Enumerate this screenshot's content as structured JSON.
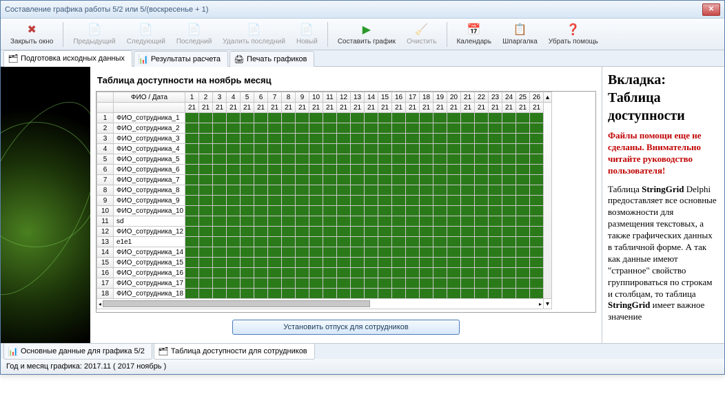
{
  "window": {
    "title": "Составление графика работы 5/2 или 5/(воскресенье + 1)"
  },
  "toolbar": [
    {
      "icon": "✖",
      "label": "Закрыть окно",
      "color": "#c04040",
      "enabled": true,
      "name": "close-window-button"
    },
    {
      "sep": true
    },
    {
      "icon": "📄",
      "label": "Предыдущий",
      "enabled": false,
      "name": "prev-button"
    },
    {
      "icon": "📄",
      "label": "Следующий",
      "enabled": false,
      "name": "next-button"
    },
    {
      "icon": "📄",
      "label": "Последний",
      "enabled": false,
      "name": "last-button"
    },
    {
      "icon": "📄",
      "label": "Удалить последний",
      "enabled": false,
      "name": "delete-last-button"
    },
    {
      "icon": "📄",
      "label": "Новый",
      "enabled": false,
      "name": "new-button"
    },
    {
      "sep": true
    },
    {
      "icon": "▶",
      "label": "Составить график",
      "color": "#2a9a2a",
      "enabled": true,
      "name": "compose-button"
    },
    {
      "icon": "🧹",
      "label": "Очистить",
      "enabled": false,
      "name": "clear-button"
    },
    {
      "sep": true
    },
    {
      "icon": "📅",
      "label": "Календарь",
      "enabled": true,
      "name": "calendar-button"
    },
    {
      "icon": "📋",
      "label": "Шпаргалка",
      "enabled": true,
      "name": "cheatsheet-button"
    },
    {
      "icon": "❓",
      "label": "Убрать помощь",
      "color": "#c04040",
      "enabled": true,
      "name": "hide-help-button"
    }
  ],
  "topTabs": [
    {
      "icon": "🗂",
      "label": "Подготовка исходных данных",
      "active": true,
      "name": "tab-prepare"
    },
    {
      "icon": "📊",
      "label": "Результаты расчета",
      "active": false,
      "name": "tab-results"
    },
    {
      "icon": "🖨",
      "label": "Печать графиков",
      "active": false,
      "name": "tab-print"
    }
  ],
  "content": {
    "title": "Таблица доступности на ноябрь месяц",
    "headerFio": "ФИО / Дата",
    "days": [
      1,
      2,
      3,
      4,
      5,
      6,
      7,
      8,
      9,
      10,
      11,
      12,
      13,
      14,
      15,
      16,
      17,
      18,
      19,
      20,
      21,
      22,
      23,
      24,
      25,
      26
    ],
    "subheader": "21",
    "rows": [
      {
        "n": 1,
        "fio": "ФИО_сотрудника_1"
      },
      {
        "n": 2,
        "fio": "ФИО_сотрудника_2"
      },
      {
        "n": 3,
        "fio": "ФИО_сотрудника_3"
      },
      {
        "n": 4,
        "fio": "ФИО_сотрудника_4"
      },
      {
        "n": 5,
        "fio": "ФИО_сотрудника_5"
      },
      {
        "n": 6,
        "fio": "ФИО_сотрудника_6"
      },
      {
        "n": 7,
        "fio": "ФИО_сотрудника_7"
      },
      {
        "n": 8,
        "fio": "ФИО_сотрудника_8"
      },
      {
        "n": 9,
        "fio": "ФИО_сотрудника_9"
      },
      {
        "n": 10,
        "fio": "ФИО_сотрудника_10"
      },
      {
        "n": 11,
        "fio": "sd"
      },
      {
        "n": 12,
        "fio": "ФИО_сотрудника_12"
      },
      {
        "n": 13,
        "fio": "e1e1"
      },
      {
        "n": 14,
        "fio": "ФИО_сотрудника_14"
      },
      {
        "n": 15,
        "fio": "ФИО_сотрудника_15"
      },
      {
        "n": 16,
        "fio": "ФИО_сотрудника_16"
      },
      {
        "n": 17,
        "fio": "ФИО_сотрудника_17"
      },
      {
        "n": 18,
        "fio": "ФИО_сотрудника_18"
      }
    ],
    "cellColor": "#2b7a1a",
    "bigButton": "Установить отпуск для сотрудников"
  },
  "help": {
    "title": "Вкладка: Таблица доступности",
    "warn": "Файлы помощи еще не сделаны. Внимательно читайте руководство пользователя!",
    "body1": "Таблица ",
    "bold1": "StringGrid",
    "body2": " Delphi предоставляет все основные возможности для размещения текстовых, а также графических данных в табличной форме. А так как данные имеют \"странное\" свойство группироваться по строкам и столбцам, то таблица ",
    "bold2": "StringGrid",
    "body3": " имеет важное значение"
  },
  "bottomTabs": [
    {
      "icon": "📊",
      "label": "Основные данные для графика 5/2",
      "active": false,
      "name": "btab-main"
    },
    {
      "icon": "🗂",
      "label": "Таблица доступности для сотрудников",
      "active": true,
      "name": "btab-avail"
    }
  ],
  "status": {
    "text": "Год и месяц графика:  2017.11  ( 2017  ноябрь )"
  }
}
